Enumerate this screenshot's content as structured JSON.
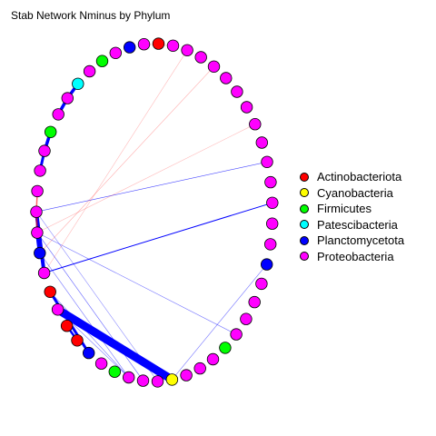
{
  "title": "Stab Network Nminus by Phylum",
  "colors": {
    "Actinobacteriota": "#ff0000",
    "Cyanobacteria": "#ffff00",
    "Firmicutes": "#00ff00",
    "Patescibacteria": "#00ffff",
    "Planctomycetota": "#0000ff",
    "Proteobacteria": "#ff00ff"
  },
  "legend": [
    {
      "label": "Actinobacteriota",
      "color": "#ff0000"
    },
    {
      "label": "Cyanobacteria",
      "color": "#ffff00"
    },
    {
      "label": "Firmicutes",
      "color": "#00ff00"
    },
    {
      "label": "Patescibacteria",
      "color": "#00ffff"
    },
    {
      "label": "Planctomycetota",
      "color": "#0000ff"
    },
    {
      "label": "Proteobacteria",
      "color": "#ff00ff"
    }
  ],
  "nodes": [
    {
      "phylum": "Actinobacteriota"
    },
    {
      "phylum": "Proteobacteria"
    },
    {
      "phylum": "Proteobacteria"
    },
    {
      "phylum": "Proteobacteria"
    },
    {
      "phylum": "Proteobacteria"
    },
    {
      "phylum": "Proteobacteria"
    },
    {
      "phylum": "Proteobacteria"
    },
    {
      "phylum": "Proteobacteria"
    },
    {
      "phylum": "Proteobacteria"
    },
    {
      "phylum": "Proteobacteria"
    },
    {
      "phylum": "Proteobacteria"
    },
    {
      "phylum": "Proteobacteria"
    },
    {
      "phylum": "Proteobacteria"
    },
    {
      "phylum": "Proteobacteria"
    },
    {
      "phylum": "Proteobacteria"
    },
    {
      "phylum": "Planctomycetota"
    },
    {
      "phylum": "Proteobacteria"
    },
    {
      "phylum": "Proteobacteria"
    },
    {
      "phylum": "Proteobacteria"
    },
    {
      "phylum": "Proteobacteria"
    },
    {
      "phylum": "Firmicutes"
    },
    {
      "phylum": "Proteobacteria"
    },
    {
      "phylum": "Proteobacteria"
    },
    {
      "phylum": "Proteobacteria"
    },
    {
      "phylum": "Cyanobacteria"
    },
    {
      "phylum": "Proteobacteria"
    },
    {
      "phylum": "Proteobacteria"
    },
    {
      "phylum": "Proteobacteria"
    },
    {
      "phylum": "Firmicutes"
    },
    {
      "phylum": "Proteobacteria"
    },
    {
      "phylum": "Planctomycetota"
    },
    {
      "phylum": "Actinobacteriota"
    },
    {
      "phylum": "Actinobacteriota"
    },
    {
      "phylum": "Proteobacteria"
    },
    {
      "phylum": "Actinobacteriota"
    },
    {
      "phylum": "Proteobacteria"
    },
    {
      "phylum": "Planctomycetota"
    },
    {
      "phylum": "Proteobacteria"
    },
    {
      "phylum": "Proteobacteria"
    },
    {
      "phylum": "Proteobacteria"
    },
    {
      "phylum": "Proteobacteria"
    },
    {
      "phylum": "Proteobacteria"
    },
    {
      "phylum": "Firmicutes"
    },
    {
      "phylum": "Proteobacteria"
    },
    {
      "phylum": "Proteobacteria"
    },
    {
      "phylum": "Patescibacteria"
    },
    {
      "phylum": "Proteobacteria"
    },
    {
      "phylum": "Firmicutes"
    },
    {
      "phylum": "Proteobacteria"
    },
    {
      "phylum": "Planctomycetota"
    },
    {
      "phylum": "Proteobacteria"
    }
  ],
  "edges": [
    {
      "source": 33,
      "target": 24,
      "sign": "positive",
      "weight": 9
    },
    {
      "source": 35,
      "target": 38,
      "sign": "positive",
      "weight": 4
    },
    {
      "source": 36,
      "target": 37,
      "sign": "positive",
      "weight": 4
    },
    {
      "source": 43,
      "target": 44,
      "sign": "positive",
      "weight": 3.5
    },
    {
      "source": 44,
      "target": 45,
      "sign": "positive",
      "weight": 3.5
    },
    {
      "source": 41,
      "target": 42,
      "sign": "positive",
      "weight": 3.5
    },
    {
      "source": 40,
      "target": 41,
      "sign": "positive",
      "weight": 3
    },
    {
      "source": 34,
      "target": 30,
      "sign": "positive",
      "weight": 3
    },
    {
      "source": 31,
      "target": 32,
      "sign": "positive",
      "weight": 2.5
    },
    {
      "source": 37,
      "target": 38,
      "sign": "negative",
      "weight": 2
    },
    {
      "source": 38,
      "target": 39,
      "sign": "negative",
      "weight": 1.5
    },
    {
      "source": 35,
      "target": 12,
      "sign": "positive",
      "weight": 1
    },
    {
      "source": 38,
      "target": 10,
      "sign": "positive",
      "weight": 0.6
    },
    {
      "source": 37,
      "target": 26,
      "sign": "positive",
      "weight": 0.5
    },
    {
      "source": 37,
      "target": 19,
      "sign": "positive",
      "weight": 0.4
    },
    {
      "source": 36,
      "target": 27,
      "sign": "positive",
      "weight": 0.4
    },
    {
      "source": 34,
      "target": 27,
      "sign": "positive",
      "weight": 0.4
    },
    {
      "source": 33,
      "target": 24,
      "sign": "positive",
      "weight": 0.4
    },
    {
      "source": 24,
      "target": 15,
      "sign": "positive",
      "weight": 0.4
    },
    {
      "source": 33,
      "target": 27,
      "sign": "positive",
      "weight": 0.4
    },
    {
      "source": 38,
      "target": 25,
      "sign": "positive",
      "weight": 0.3
    },
    {
      "source": 4,
      "target": 36,
      "sign": "negative",
      "weight": 0.4
    },
    {
      "source": 1,
      "target": 50,
      "sign": "negative",
      "weight": 0.3
    },
    {
      "source": 8,
      "target": 37,
      "sign": "negative",
      "weight": 0.3
    },
    {
      "source": 2,
      "target": 35,
      "sign": "negative",
      "weight": 0.3
    }
  ]
}
